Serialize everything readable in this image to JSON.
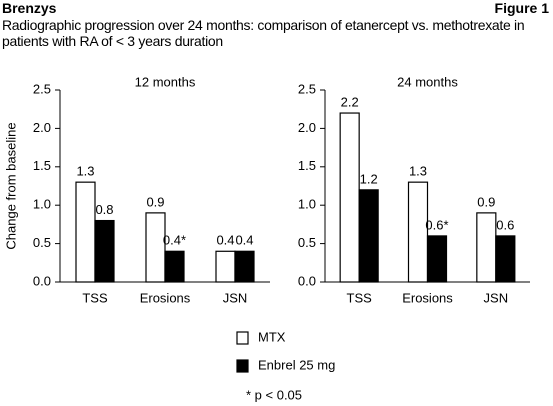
{
  "header": {
    "brand": "Brenzys",
    "figure": "Figure 1",
    "title": "Radiographic progression over 24 months: comparison of etanercept vs. methotrexate in patients with RA of < 3 years duration"
  },
  "chart_data": [
    {
      "type": "bar",
      "title": "12 months",
      "ylabel": "Change from baseline",
      "categories": [
        "TSS",
        "Erosions",
        "JSN"
      ],
      "series": [
        {
          "name": "MTX",
          "color": "#ffffff",
          "values": [
            1.3,
            0.9,
            0.4
          ]
        },
        {
          "name": "Enbrel 25 mg",
          "color": "#000000",
          "values": [
            0.8,
            0.4,
            0.4
          ],
          "value_labels": [
            "0.8",
            "0.4*",
            "0.4"
          ]
        }
      ],
      "ylim": [
        0,
        2.5
      ],
      "yticks": [
        {
          "value": 0,
          "label": "0.0"
        },
        0.5,
        {
          "value": 1,
          "label": "1.0"
        },
        1.5,
        {
          "value": 2,
          "label": "2.0"
        },
        2.5
      ]
    },
    {
      "type": "bar",
      "title": "24 months",
      "categories": [
        "TSS",
        "Erosions",
        "JSN"
      ],
      "series": [
        {
          "color": "#ffffff",
          "values": [
            2.2,
            1.3,
            0.9
          ]
        },
        {
          "color": "#000000",
          "values": [
            1.2,
            0.6,
            0.6
          ],
          "value_labels": [
            "1.2",
            "0.6*",
            "0.6"
          ]
        }
      ],
      "ylim": [
        0,
        2.5
      ],
      "yticks": [
        {
          "value": 0,
          "label": "0.0"
        },
        0.5,
        {
          "value": 1,
          "label": "1.0"
        },
        1.5,
        {
          "value": 2,
          "label": "2.0"
        },
        2.5
      ]
    }
  ],
  "footnote": "* p < 0.05"
}
